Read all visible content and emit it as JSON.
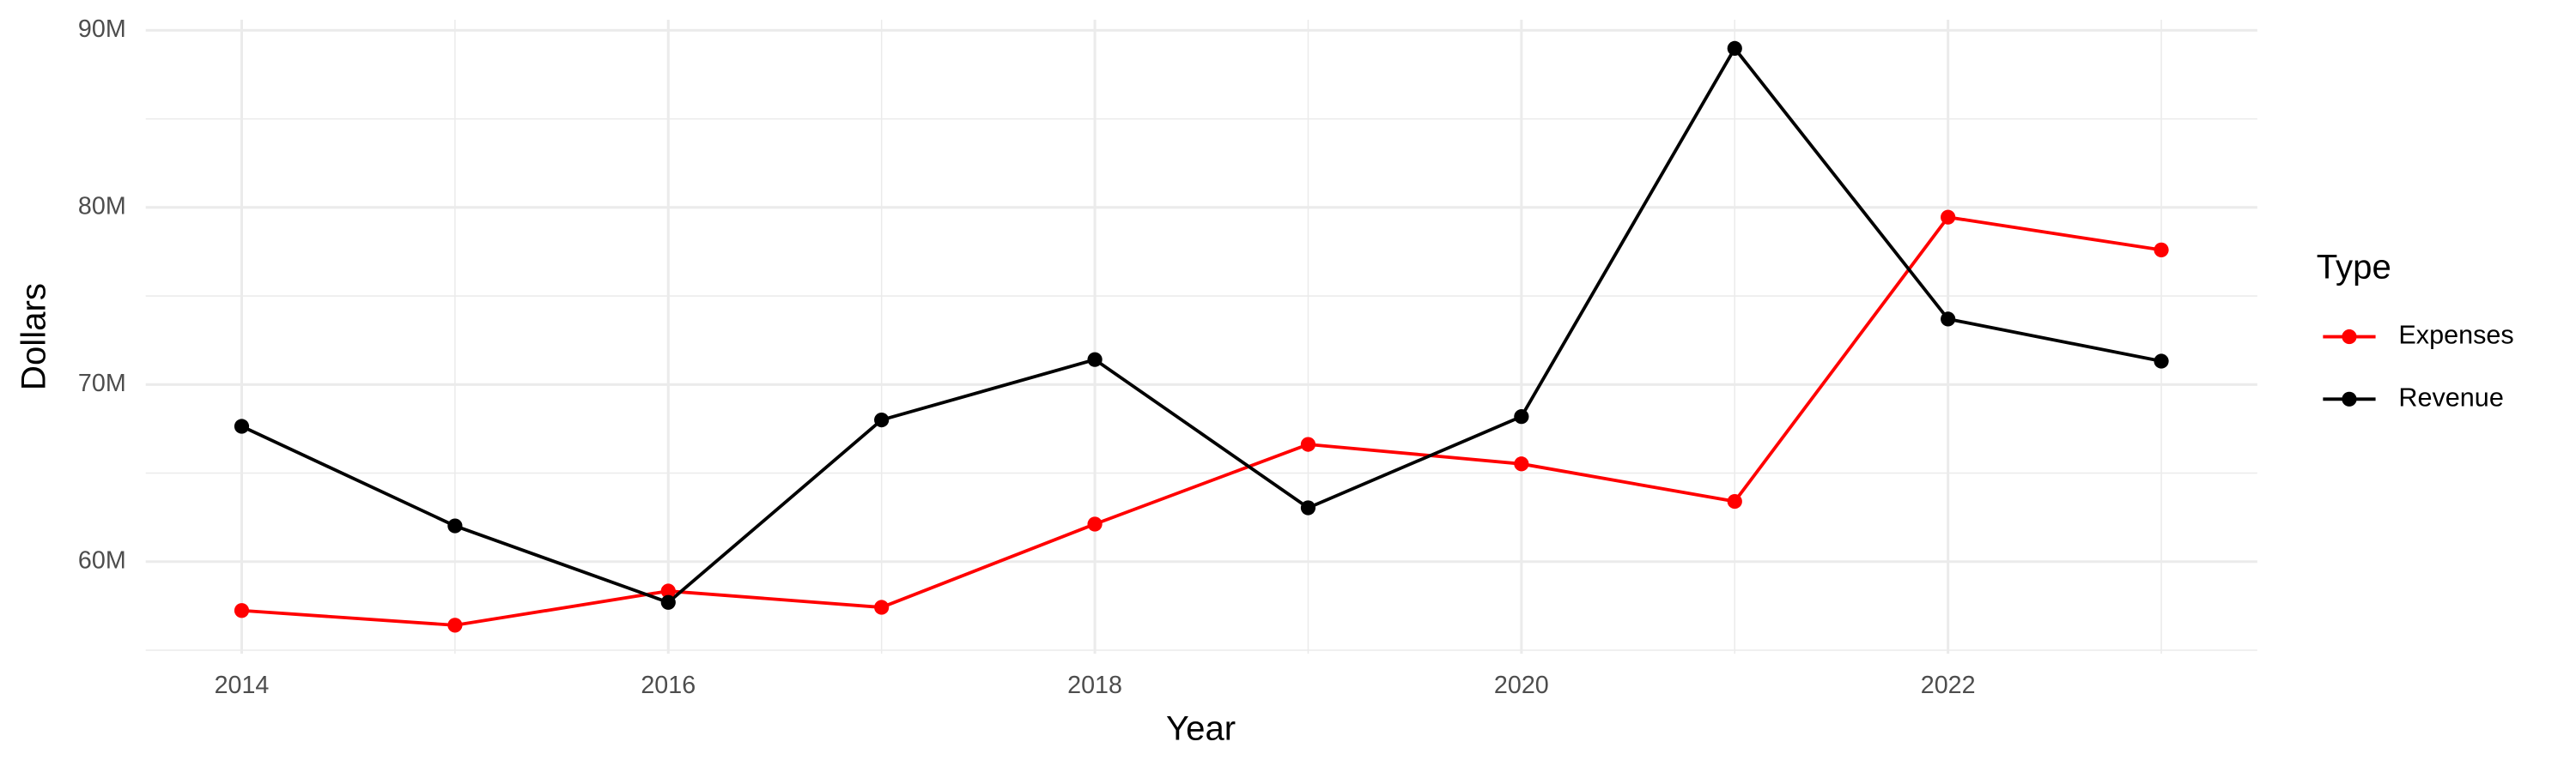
{
  "chart_data": {
    "type": "line",
    "x_label": "Year",
    "y_label": "Dollars",
    "legend_title": "Type",
    "x": [
      2014,
      2015,
      2016,
      2017,
      2018,
      2019,
      2020,
      2021,
      2022,
      2023
    ],
    "series": [
      {
        "name": "Expenses",
        "color": "#ff0000",
        "values": [
          57240000,
          56410000,
          58340000,
          57420000,
          62120000,
          66620000,
          65520000,
          63400000,
          79450000,
          77600000
        ]
      },
      {
        "name": "Revenue",
        "color": "#000000",
        "values": [
          67640000,
          62020000,
          57700000,
          68000000,
          71410000,
          63040000,
          68190000,
          88980000,
          73700000,
          71320000
        ]
      }
    ],
    "xlim": [
      2013.55,
      2023.45
    ],
    "xticks": [
      2014,
      2016,
      2018,
      2020,
      2022
    ],
    "ylim": [
      54800000,
      90600000
    ],
    "yticks": [
      {
        "value": 60000000,
        "label": "60M"
      },
      {
        "value": 70000000,
        "label": "70M"
      },
      {
        "value": 80000000,
        "label": "80M"
      },
      {
        "value": 90000000,
        "label": "90M"
      }
    ],
    "grid": true,
    "legend": "right"
  }
}
